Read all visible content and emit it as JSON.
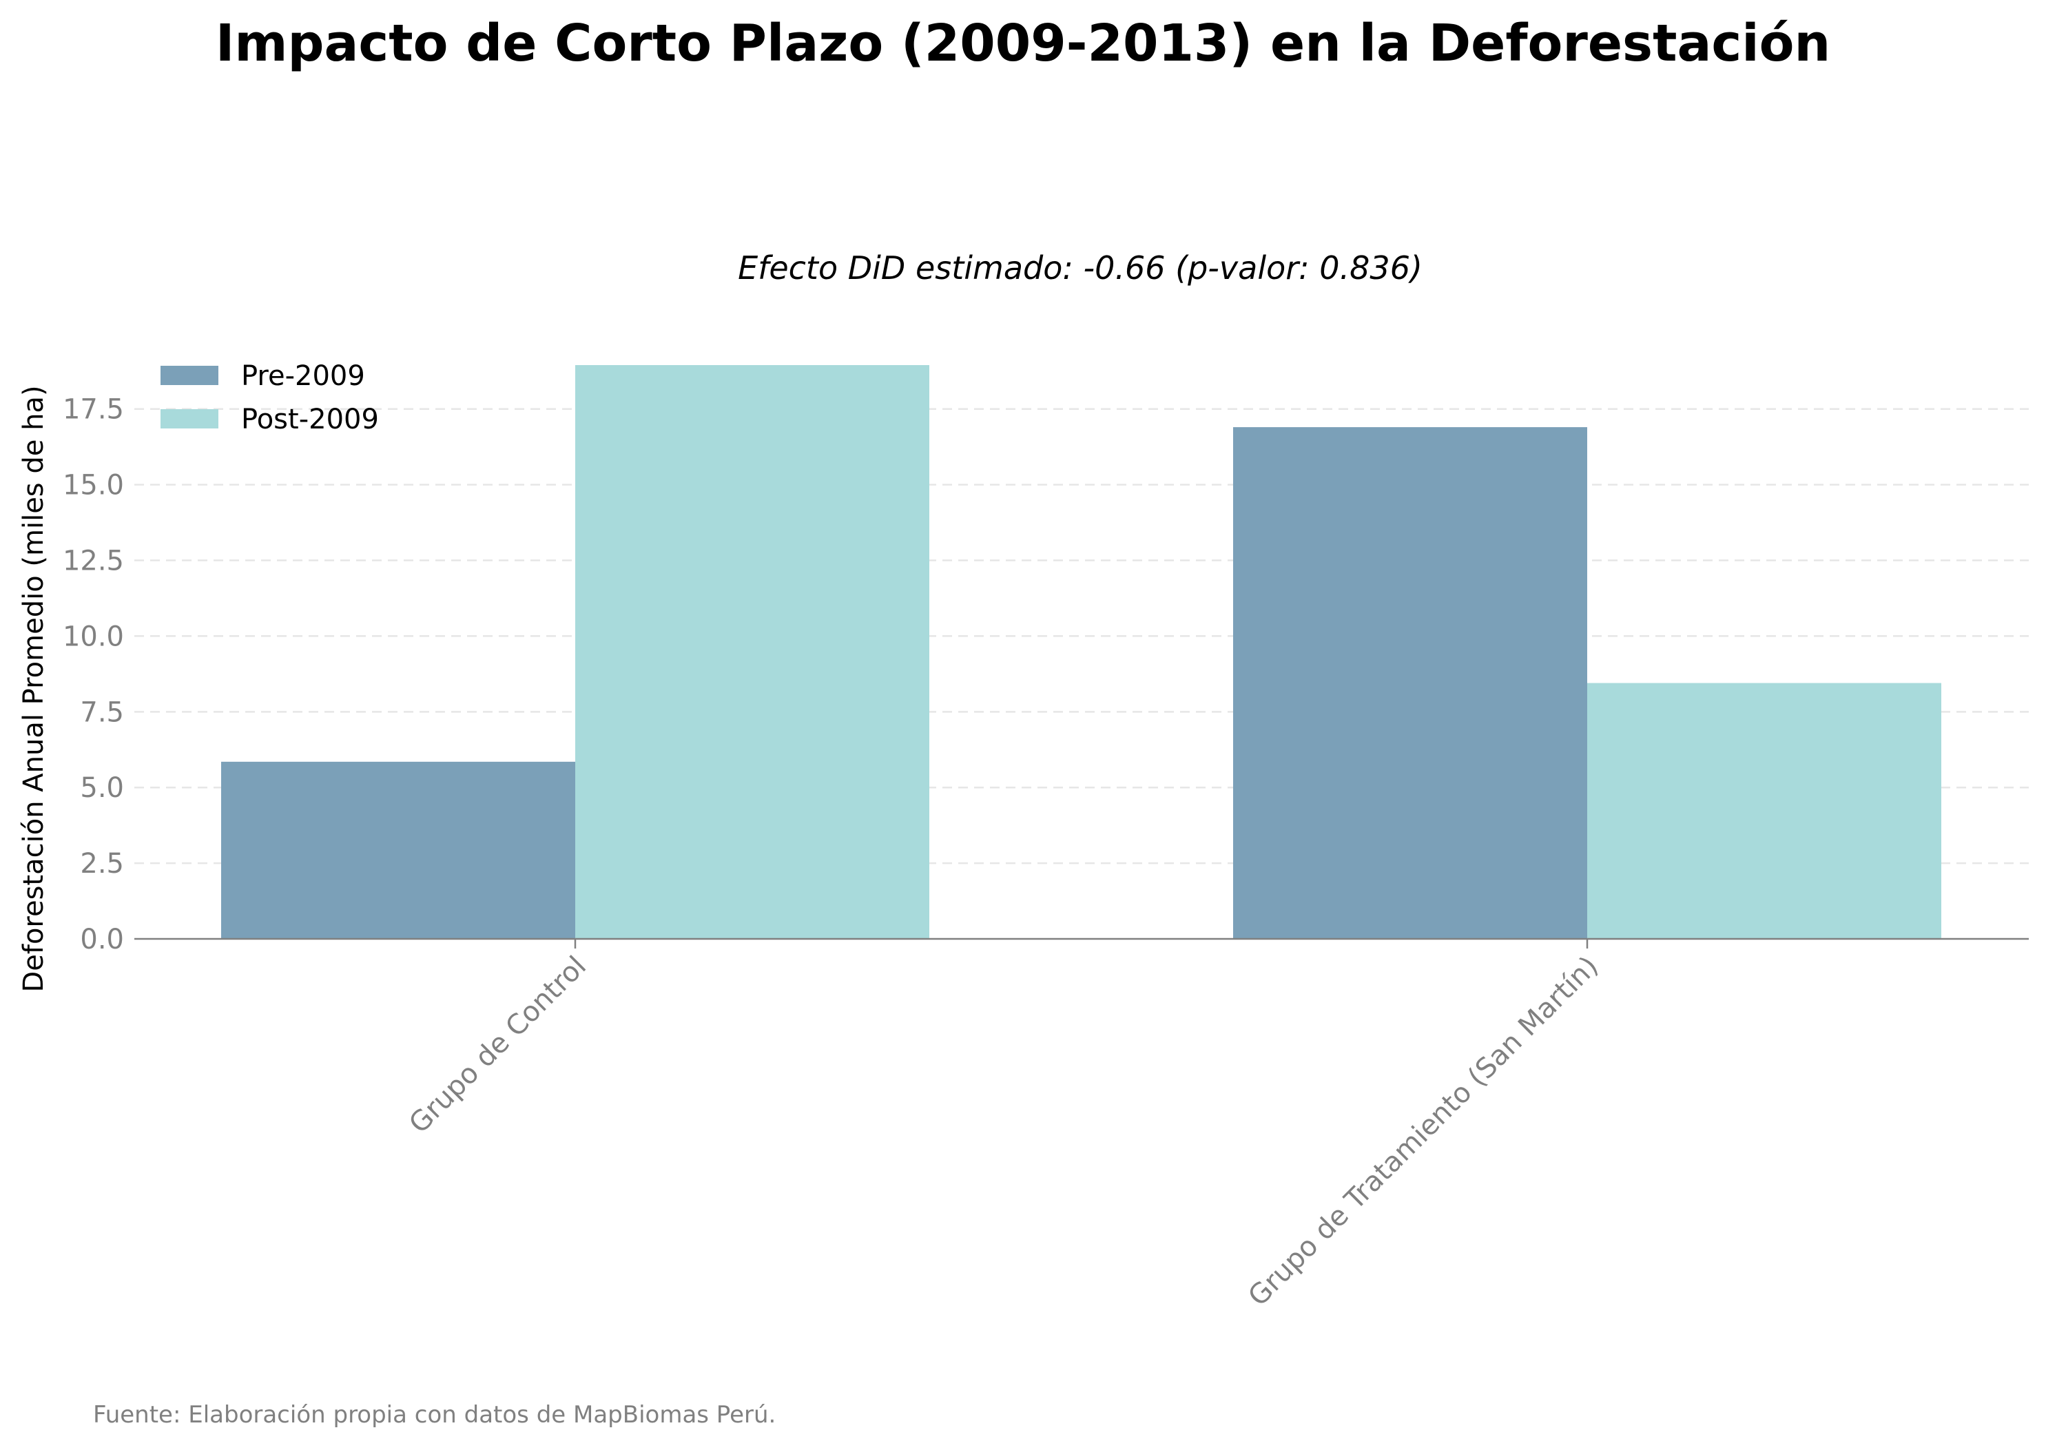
{
  "chart_data": {
    "type": "bar",
    "title": "Impacto de Corto Plazo (2009-2013) en la Deforestación",
    "subtitle": "Efecto DiD estimado: -0.66 (p-valor: 0.836)",
    "xlabel": "",
    "ylabel": "Deforestación Anual Promedio (miles de ha)",
    "categories": [
      "Grupo de Control",
      "Grupo de Tratamiento (San Martín)"
    ],
    "series": [
      {
        "name": "Pre-2009",
        "values": [
          5.85,
          16.9
        ],
        "color": "#7ba0b8"
      },
      {
        "name": "Post-2009",
        "values": [
          18.95,
          8.45
        ],
        "color": "#a8dadb"
      }
    ],
    "ylim": [
      0,
      18.95
    ],
    "yticks": [
      0.0,
      2.5,
      5.0,
      7.5,
      10.0,
      12.5,
      15.0,
      17.5
    ],
    "grid": "horizontal dashed",
    "legend_position": "top-left",
    "source_note": "Fuente: Elaboración propia con datos de MapBiomas Perú."
  }
}
